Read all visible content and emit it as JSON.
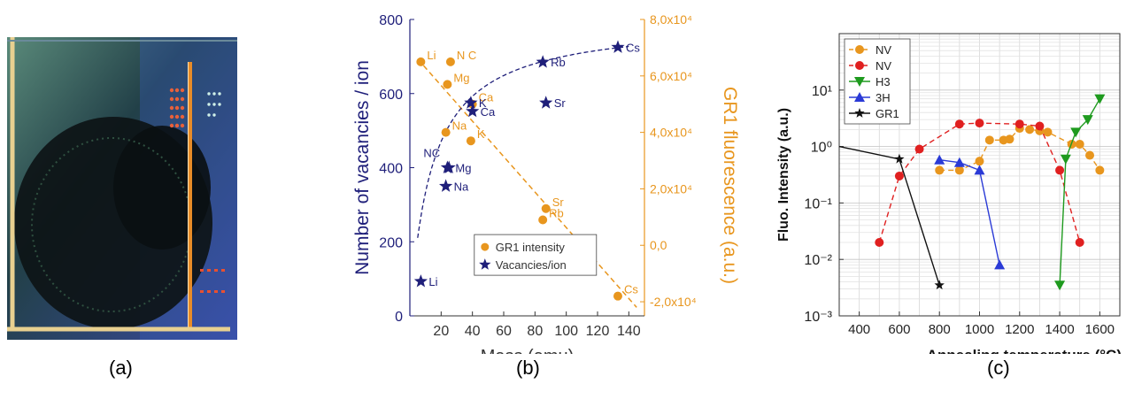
{
  "panels": {
    "a": "(a)",
    "b": "(b)",
    "c": "(c)"
  },
  "colors": {
    "navy": "#1f1f7a",
    "orange": "#e8961e",
    "red": "#e02020",
    "green": "#1e9a1e",
    "blue": "#2a3ad6",
    "black": "#111111",
    "photo_bg": "#2a4a52",
    "photo_frame": "#e8d090"
  },
  "chart_data": [
    {
      "type": "scatter",
      "panel": "b",
      "xlabel": "Mass (amu)",
      "ylabel": "Number of vacancies / ion",
      "y2label": "GR1 fluorescence (a.u.)",
      "xlim": [
        0,
        150
      ],
      "ylim": [
        0,
        800
      ],
      "y2lim": [
        -25000,
        80000
      ],
      "x_ticks": [
        "20",
        "40",
        "60",
        "80",
        "100",
        "120",
        "140"
      ],
      "y_ticks": [
        "0",
        "200",
        "400",
        "600",
        "800"
      ],
      "y2_ticks": [
        "-2,0x10⁴",
        "0,0",
        "2,0x10⁴",
        "4,0x10⁴",
        "6,0x10⁴",
        "8,0x10⁴"
      ],
      "legend_position": "bottom-center",
      "series": [
        {
          "name": "GR1 intensity",
          "axis": "right",
          "marker": "circle",
          "points": [
            {
              "x": 7,
              "y": 65000,
              "label": "Li"
            },
            {
              "x": 26,
              "y": 65000,
              "label": "N C"
            },
            {
              "x": 24,
              "y": 57000,
              "label": "Mg"
            },
            {
              "x": 40,
              "y": 50000,
              "label": "Ca"
            },
            {
              "x": 23,
              "y": 40000,
              "label": "Na"
            },
            {
              "x": 39,
              "y": 37000,
              "label": "K"
            },
            {
              "x": 87,
              "y": 13000,
              "label": "Sr"
            },
            {
              "x": 85,
              "y": 9000,
              "label": "Rb"
            },
            {
              "x": 133,
              "y": -18000,
              "label": "Cs"
            }
          ],
          "trend": {
            "type": "linear",
            "x": [
              5,
              145
            ],
            "y": [
              66000,
              -22000
            ]
          }
        },
        {
          "name": "Vacancies/ion",
          "axis": "left",
          "marker": "star",
          "points": [
            {
              "x": 7,
              "y": 93,
              "label": "Li"
            },
            {
              "x": 23,
              "y": 350,
              "label": "Na"
            },
            {
              "x": 24,
              "y": 400,
              "label": "Mg"
            },
            {
              "x": 25,
              "y": 400,
              "label": "NC"
            },
            {
              "x": 39,
              "y": 575,
              "label": "K"
            },
            {
              "x": 40,
              "y": 552,
              "label": "Ca"
            },
            {
              "x": 85,
              "y": 685,
              "label": "Rb"
            },
            {
              "x": 87,
              "y": 575,
              "label": "Sr"
            },
            {
              "x": 133,
              "y": 725,
              "label": "Cs"
            }
          ],
          "trend": {
            "type": "saturation",
            "a": 800,
            "b": 14,
            "x": [
              5,
              140
            ]
          }
        }
      ]
    },
    {
      "type": "line",
      "panel": "c",
      "xlabel": "Annealing temperature (°C)",
      "ylabel": "Fluo. Intensity (a.u.)",
      "xlim": [
        300,
        1700
      ],
      "ylim_log10": [
        -3,
        2
      ],
      "y_scale": "log",
      "x_ticks": [
        "400",
        "600",
        "800",
        "1000",
        "1200",
        "1400",
        "1600"
      ],
      "y_ticks": [
        "10⁻³",
        "10⁻²",
        "10⁻¹",
        "10⁰",
        "10¹"
      ],
      "grid": true,
      "legend_position": "top-left",
      "series": [
        {
          "name": "NV",
          "color": "orange",
          "marker": "circle",
          "dash": true,
          "points": [
            [
              800,
              0.38
            ],
            [
              900,
              0.38
            ],
            [
              1000,
              0.55
            ],
            [
              1050,
              1.3
            ],
            [
              1120,
              1.3
            ],
            [
              1150,
              1.35
            ],
            [
              1200,
              2.1
            ],
            [
              1250,
              2.0
            ],
            [
              1300,
              1.9
            ],
            [
              1340,
              1.8
            ],
            [
              1460,
              1.1
            ],
            [
              1500,
              1.1
            ],
            [
              1550,
              0.7
            ],
            [
              1600,
              0.38
            ]
          ]
        },
        {
          "name": "NV",
          "color": "red",
          "marker": "circle",
          "dash": true,
          "points": [
            [
              500,
              0.02
            ],
            [
              600,
              0.3
            ],
            [
              700,
              0.9
            ],
            [
              900,
              2.5
            ],
            [
              1000,
              2.6
            ],
            [
              1200,
              2.5
            ],
            [
              1300,
              2.3
            ],
            [
              1400,
              0.38
            ],
            [
              1500,
              0.02
            ]
          ]
        },
        {
          "name": "H3",
          "color": "green",
          "marker": "triangle-down",
          "dash": false,
          "points": [
            [
              1400,
              0.0035
            ],
            [
              1430,
              0.6
            ],
            [
              1480,
              1.8
            ],
            [
              1540,
              3.0
            ],
            [
              1600,
              7.0
            ]
          ]
        },
        {
          "name": "3H",
          "color": "blue",
          "marker": "triangle-up",
          "dash": false,
          "points": [
            [
              800,
              0.58
            ],
            [
              900,
              0.52
            ],
            [
              1000,
              0.38
            ],
            [
              1100,
              0.008
            ]
          ]
        },
        {
          "name": "GR1",
          "color": "black",
          "marker": "star",
          "dash": false,
          "points": [
            [
              300,
              1.0
            ],
            [
              600,
              0.6
            ],
            [
              800,
              0.0035
            ]
          ]
        }
      ]
    }
  ]
}
